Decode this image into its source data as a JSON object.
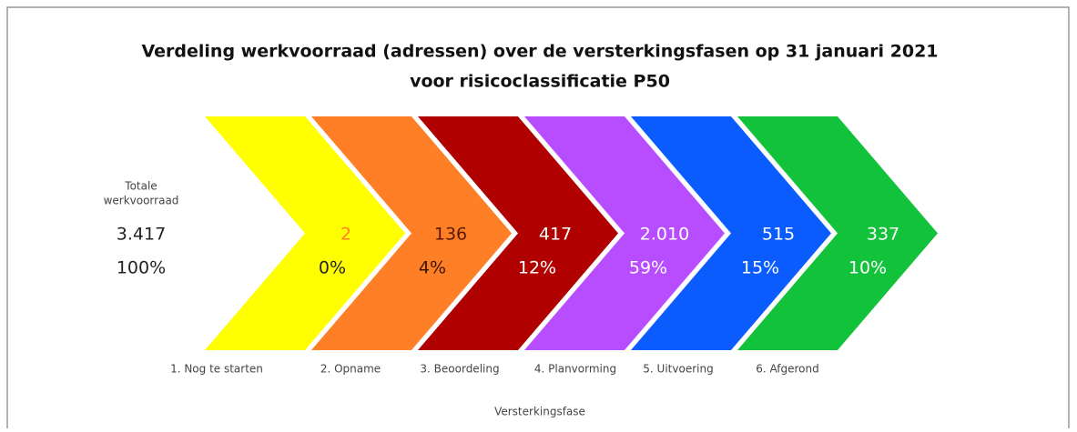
{
  "title": [
    "Verdeling werkvoorraad (adressen) over de versterkingsfasen op 31 januari 2021",
    "voor risicoclassificatie P50"
  ],
  "total": {
    "label": [
      "Totale",
      "werkvoorraad"
    ],
    "value": "3.417",
    "percent": "100%"
  },
  "phases": [
    {
      "label": "1. Nog te starten",
      "value": "2",
      "percent": "0%"
    },
    {
      "label": "2. Opname",
      "value": "136",
      "percent": "4%"
    },
    {
      "label": "3. Beoordeling",
      "value": "417",
      "percent": "12%"
    },
    {
      "label": "4. Planvorming",
      "value": "2.010",
      "percent": "59%"
    },
    {
      "label": "5. Uitvoering",
      "value": "515",
      "percent": "15%"
    },
    {
      "label": "6. Afgerond",
      "value": "337",
      "percent": "10%"
    }
  ],
  "axis_label": "Versterkingsfase"
}
